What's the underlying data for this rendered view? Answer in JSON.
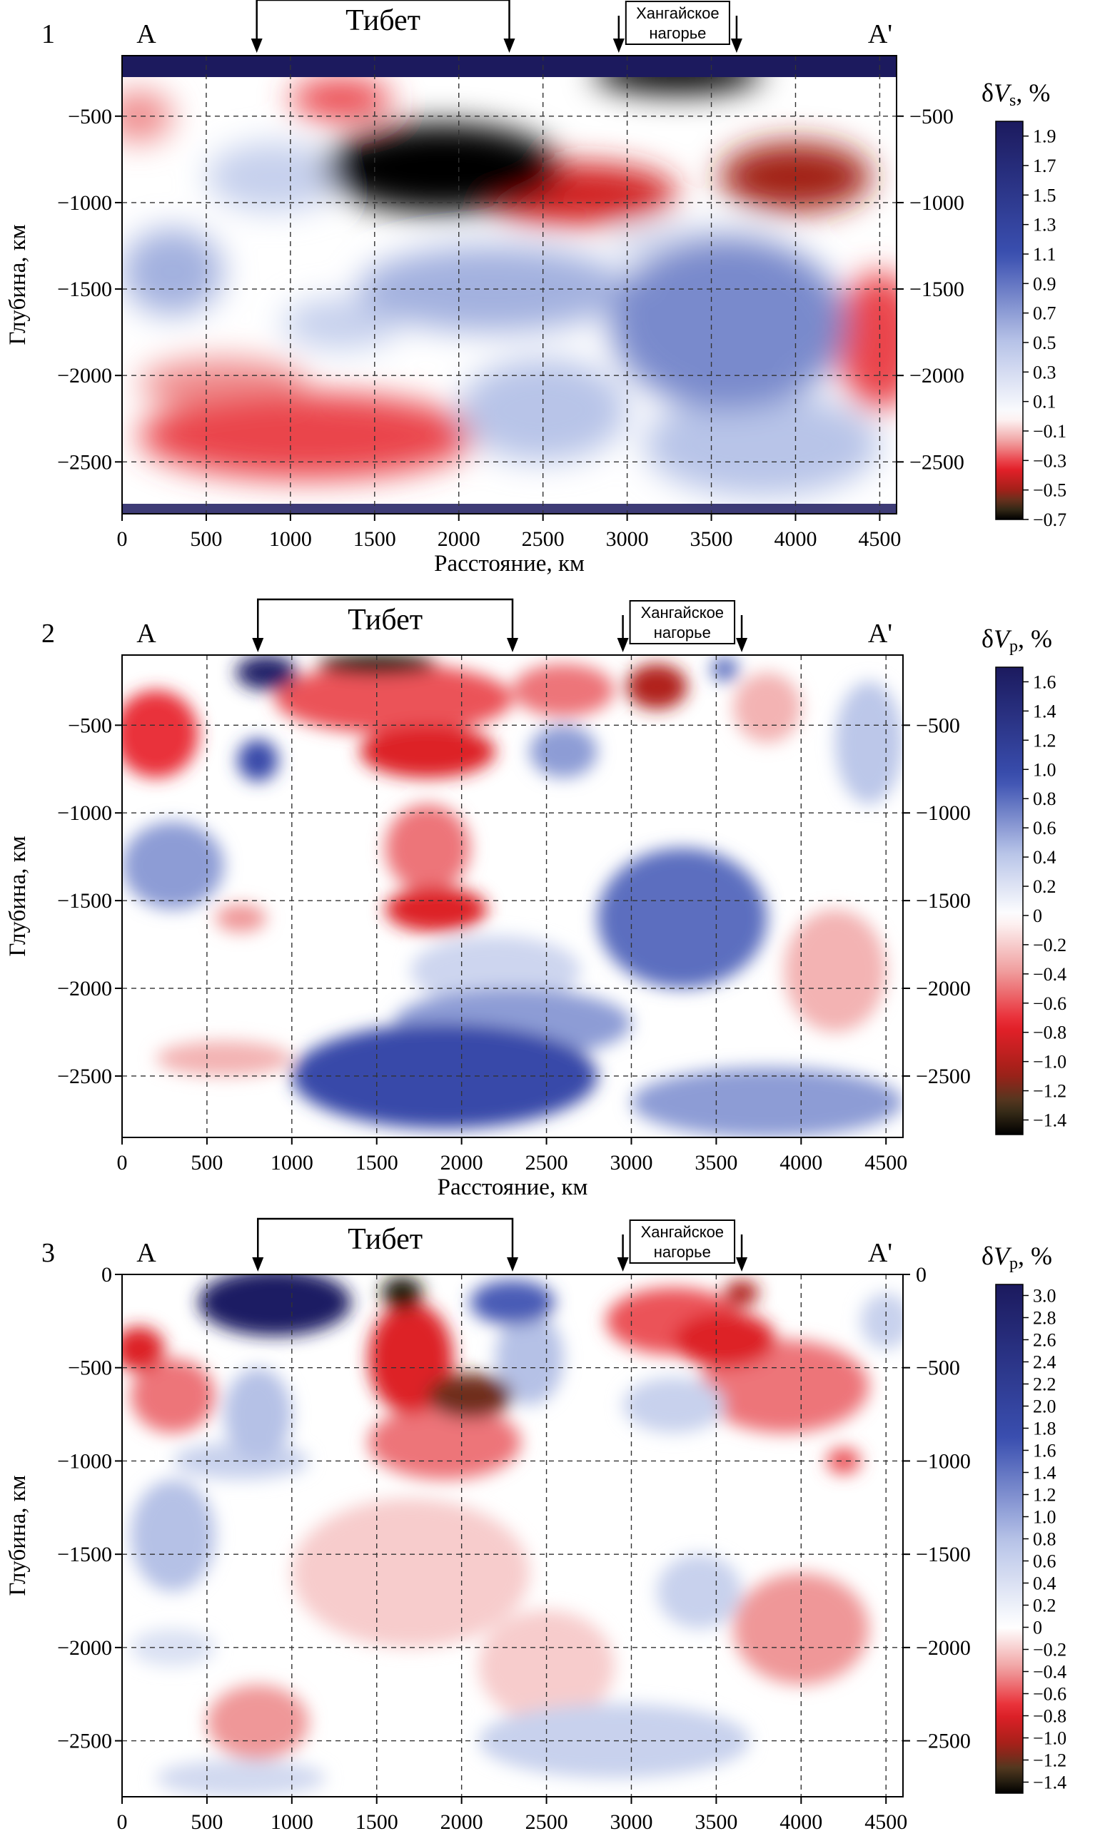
{
  "labels": {
    "xlabel": "Расстояние, км",
    "ylabel": "Глубина, км",
    "point_a": "A",
    "point_a_prime": "A'",
    "region_tibet": "Тибет",
    "region_khangai_line1": "Хангайское",
    "region_khangai_line2": "нагорье"
  },
  "colors": {
    "max_positive": "#1c1a5e",
    "positive": "#3a4fb0",
    "zero": "#ffffff",
    "negative": "#e8202a",
    "mid_negative": "#a02018",
    "dark_negative": "#4a3a20",
    "min_negative": "#000000"
  },
  "chart_data": [
    {
      "type": "heatmap",
      "panel_number": "1",
      "colorbar_title": "δVs, %",
      "x_ticks": [
        0,
        500,
        1000,
        1500,
        2000,
        2500,
        3000,
        3500,
        4000,
        4500
      ],
      "y_ticks": [
        -500,
        -1000,
        -1500,
        -2000,
        -2500
      ],
      "xlim": [
        0,
        4600
      ],
      "ylim": [
        -2800,
        -150
      ],
      "grid": true,
      "colorbar_ticks": [
        1.9,
        1.7,
        1.5,
        1.3,
        1.1,
        0.9,
        0.7,
        0.5,
        0.3,
        0.1,
        -0.1,
        -0.3,
        -0.5,
        -0.7
      ],
      "colorbar_range": [
        -0.7,
        2.0
      ],
      "regions": [
        {
          "name": "Тибет",
          "x_start": 800,
          "x_end": 2300
        },
        {
          "name": "Хангайское нагорье",
          "x_start": 2950,
          "x_end": 3650
        }
      ],
      "anomalies": [
        {
          "x": 1900,
          "y": -800,
          "value": -0.7,
          "rx": 700,
          "ry": 260
        },
        {
          "x": 3300,
          "y": -250,
          "value": -0.7,
          "rx": 500,
          "ry": 120
        },
        {
          "x": 1300,
          "y": -400,
          "value": -0.3,
          "rx": 300,
          "ry": 120
        },
        {
          "x": 2700,
          "y": -950,
          "value": -0.4,
          "rx": 600,
          "ry": 180
        },
        {
          "x": 4000,
          "y": -850,
          "value": -0.5,
          "rx": 450,
          "ry": 200
        },
        {
          "x": 100,
          "y": -500,
          "value": -0.2,
          "rx": 200,
          "ry": 150
        },
        {
          "x": 1100,
          "y": -2350,
          "value": -0.3,
          "rx": 1000,
          "ry": 250
        },
        {
          "x": 600,
          "y": -2050,
          "value": -0.2,
          "rx": 500,
          "ry": 150
        },
        {
          "x": 4500,
          "y": -1800,
          "value": -0.3,
          "rx": 250,
          "ry": 400
        },
        {
          "x": 300,
          "y": -1400,
          "value": 0.6,
          "rx": 300,
          "ry": 250
        },
        {
          "x": 2200,
          "y": -1500,
          "value": 0.6,
          "rx": 800,
          "ry": 250
        },
        {
          "x": 3600,
          "y": -1700,
          "value": 0.8,
          "rx": 700,
          "ry": 500
        },
        {
          "x": 1300,
          "y": -1700,
          "value": 0.4,
          "rx": 350,
          "ry": 150
        },
        {
          "x": 2500,
          "y": -2200,
          "value": 0.5,
          "rx": 500,
          "ry": 300
        },
        {
          "x": 900,
          "y": -850,
          "value": 0.4,
          "rx": 400,
          "ry": 200
        },
        {
          "x": 3800,
          "y": -2400,
          "value": 0.5,
          "rx": 700,
          "ry": 300
        },
        {
          "x": 3400,
          "y": -1250,
          "value": 0.3,
          "rx": 500,
          "ry": 120
        }
      ]
    },
    {
      "type": "heatmap",
      "panel_number": "2",
      "colorbar_title": "δVp, %",
      "x_ticks": [
        0,
        500,
        1000,
        1500,
        2000,
        2500,
        3000,
        3500,
        4000,
        4500
      ],
      "y_ticks": [
        -500,
        -1000,
        -1500,
        -2000,
        -2500
      ],
      "xlim": [
        0,
        4600
      ],
      "ylim": [
        -2850,
        -100
      ],
      "grid": true,
      "colorbar_ticks": [
        1.6,
        1.4,
        1.2,
        1.0,
        0.8,
        0.6,
        0.4,
        0.2,
        0,
        -0.2,
        -0.4,
        -0.6,
        -0.8,
        -1.0,
        -1.2,
        -1.4
      ],
      "colorbar_range": [
        -1.5,
        1.7
      ],
      "regions": [
        {
          "name": "Тибет",
          "x_start": 800,
          "x_end": 2300
        },
        {
          "name": "Хангайское нагорье",
          "x_start": 2950,
          "x_end": 3650
        }
      ],
      "anomalies": [
        {
          "x": 1500,
          "y": -150,
          "value": -1.4,
          "rx": 350,
          "ry": 60
        },
        {
          "x": 3150,
          "y": -280,
          "value": -1.0,
          "rx": 180,
          "ry": 130
        },
        {
          "x": 1800,
          "y": -650,
          "value": -0.8,
          "rx": 400,
          "ry": 150
        },
        {
          "x": 1850,
          "y": -1550,
          "value": -0.8,
          "rx": 300,
          "ry": 130
        },
        {
          "x": 200,
          "y": -550,
          "value": -0.7,
          "rx": 250,
          "ry": 250
        },
        {
          "x": 1600,
          "y": -350,
          "value": -0.6,
          "rx": 700,
          "ry": 200
        },
        {
          "x": 2600,
          "y": -300,
          "value": -0.5,
          "rx": 300,
          "ry": 150
        },
        {
          "x": 1800,
          "y": -1200,
          "value": -0.5,
          "rx": 250,
          "ry": 250
        },
        {
          "x": 3800,
          "y": -400,
          "value": -0.3,
          "rx": 200,
          "ry": 200
        },
        {
          "x": 700,
          "y": -1600,
          "value": -0.4,
          "rx": 150,
          "ry": 80
        },
        {
          "x": 4200,
          "y": -1900,
          "value": -0.3,
          "rx": 300,
          "ry": 350
        },
        {
          "x": 600,
          "y": -2400,
          "value": -0.3,
          "rx": 400,
          "ry": 100
        },
        {
          "x": 850,
          "y": -200,
          "value": 1.6,
          "rx": 180,
          "ry": 100
        },
        {
          "x": 800,
          "y": -700,
          "value": 1.0,
          "rx": 120,
          "ry": 120
        },
        {
          "x": 300,
          "y": -1300,
          "value": 0.6,
          "rx": 300,
          "ry": 250
        },
        {
          "x": 2600,
          "y": -650,
          "value": 0.6,
          "rx": 200,
          "ry": 150
        },
        {
          "x": 3300,
          "y": -1600,
          "value": 0.8,
          "rx": 500,
          "ry": 400
        },
        {
          "x": 3550,
          "y": -180,
          "value": 0.8,
          "rx": 80,
          "ry": 70
        },
        {
          "x": 1900,
          "y": -2500,
          "value": 1.0,
          "rx": 900,
          "ry": 300
        },
        {
          "x": 2300,
          "y": -2200,
          "value": 0.6,
          "rx": 700,
          "ry": 200
        },
        {
          "x": 3800,
          "y": -2650,
          "value": 0.6,
          "rx": 800,
          "ry": 200
        },
        {
          "x": 4400,
          "y": -600,
          "value": 0.4,
          "rx": 200,
          "ry": 350
        },
        {
          "x": 2200,
          "y": -1900,
          "value": 0.3,
          "rx": 500,
          "ry": 200
        }
      ]
    },
    {
      "type": "heatmap",
      "panel_number": "3",
      "colorbar_title": "δVp, %",
      "x_ticks": [
        0,
        500,
        1000,
        1500,
        2000,
        2500,
        3000,
        3500,
        4000,
        4500
      ],
      "y_ticks": [
        0,
        -500,
        -1000,
        -1500,
        -2000,
        -2500
      ],
      "xlim": [
        0,
        4600
      ],
      "ylim": [
        -2800,
        0
      ],
      "grid": true,
      "colorbar_ticks": [
        3.0,
        2.8,
        2.6,
        2.4,
        2.2,
        2.0,
        1.8,
        1.6,
        1.4,
        1.2,
        1.0,
        0.8,
        0.6,
        0.4,
        0.2,
        0,
        -0.2,
        -0.4,
        -0.6,
        -0.8,
        -1.0,
        -1.2,
        -1.4
      ],
      "colorbar_range": [
        -1.5,
        3.1
      ],
      "regions": [
        {
          "name": "Тибет",
          "x_start": 800,
          "x_end": 2300
        },
        {
          "name": "Хангайское нагорье",
          "x_start": 2950,
          "x_end": 3650
        }
      ],
      "anomalies": [
        {
          "x": 900,
          "y": -150,
          "value": 3.0,
          "rx": 450,
          "ry": 180
        },
        {
          "x": 1650,
          "y": -100,
          "value": -1.4,
          "rx": 120,
          "ry": 90
        },
        {
          "x": 2050,
          "y": -650,
          "value": -1.2,
          "rx": 250,
          "ry": 120
        },
        {
          "x": 1700,
          "y": -450,
          "value": -0.8,
          "rx": 250,
          "ry": 300
        },
        {
          "x": 3650,
          "y": -100,
          "value": -1.0,
          "rx": 100,
          "ry": 70
        },
        {
          "x": 3550,
          "y": -350,
          "value": -0.8,
          "rx": 300,
          "ry": 150
        },
        {
          "x": 3250,
          "y": -250,
          "value": -0.6,
          "rx": 400,
          "ry": 180
        },
        {
          "x": 100,
          "y": -400,
          "value": -0.8,
          "rx": 150,
          "ry": 120
        },
        {
          "x": 300,
          "y": -650,
          "value": -0.5,
          "rx": 250,
          "ry": 200
        },
        {
          "x": 1900,
          "y": -900,
          "value": -0.5,
          "rx": 450,
          "ry": 200
        },
        {
          "x": 3900,
          "y": -600,
          "value": -0.5,
          "rx": 500,
          "ry": 250
        },
        {
          "x": 4250,
          "y": -1000,
          "value": -0.6,
          "rx": 100,
          "ry": 70
        },
        {
          "x": 2300,
          "y": -150,
          "value": 1.6,
          "rx": 250,
          "ry": 120
        },
        {
          "x": 2400,
          "y": -450,
          "value": 0.8,
          "rx": 200,
          "ry": 250
        },
        {
          "x": 800,
          "y": -750,
          "value": 0.8,
          "rx": 200,
          "ry": 250
        },
        {
          "x": 3250,
          "y": -700,
          "value": 0.6,
          "rx": 300,
          "ry": 150
        },
        {
          "x": 300,
          "y": -1400,
          "value": 0.8,
          "rx": 250,
          "ry": 300
        },
        {
          "x": 700,
          "y": -1000,
          "value": 0.6,
          "rx": 400,
          "ry": 100
        },
        {
          "x": 3400,
          "y": -1700,
          "value": 0.6,
          "rx": 250,
          "ry": 200
        },
        {
          "x": 4500,
          "y": -250,
          "value": 0.6,
          "rx": 150,
          "ry": 150
        },
        {
          "x": 2900,
          "y": -2500,
          "value": 0.6,
          "rx": 800,
          "ry": 200
        },
        {
          "x": 700,
          "y": -2700,
          "value": 0.5,
          "rx": 500,
          "ry": 100
        },
        {
          "x": 300,
          "y": -2000,
          "value": 0.4,
          "rx": 250,
          "ry": 100
        },
        {
          "x": 1700,
          "y": -1600,
          "value": -0.2,
          "rx": 700,
          "ry": 400
        },
        {
          "x": 4000,
          "y": -1900,
          "value": -0.4,
          "rx": 400,
          "ry": 300
        },
        {
          "x": 800,
          "y": -2400,
          "value": -0.4,
          "rx": 300,
          "ry": 200
        },
        {
          "x": 2500,
          "y": -2100,
          "value": -0.2,
          "rx": 400,
          "ry": 300
        }
      ]
    }
  ]
}
